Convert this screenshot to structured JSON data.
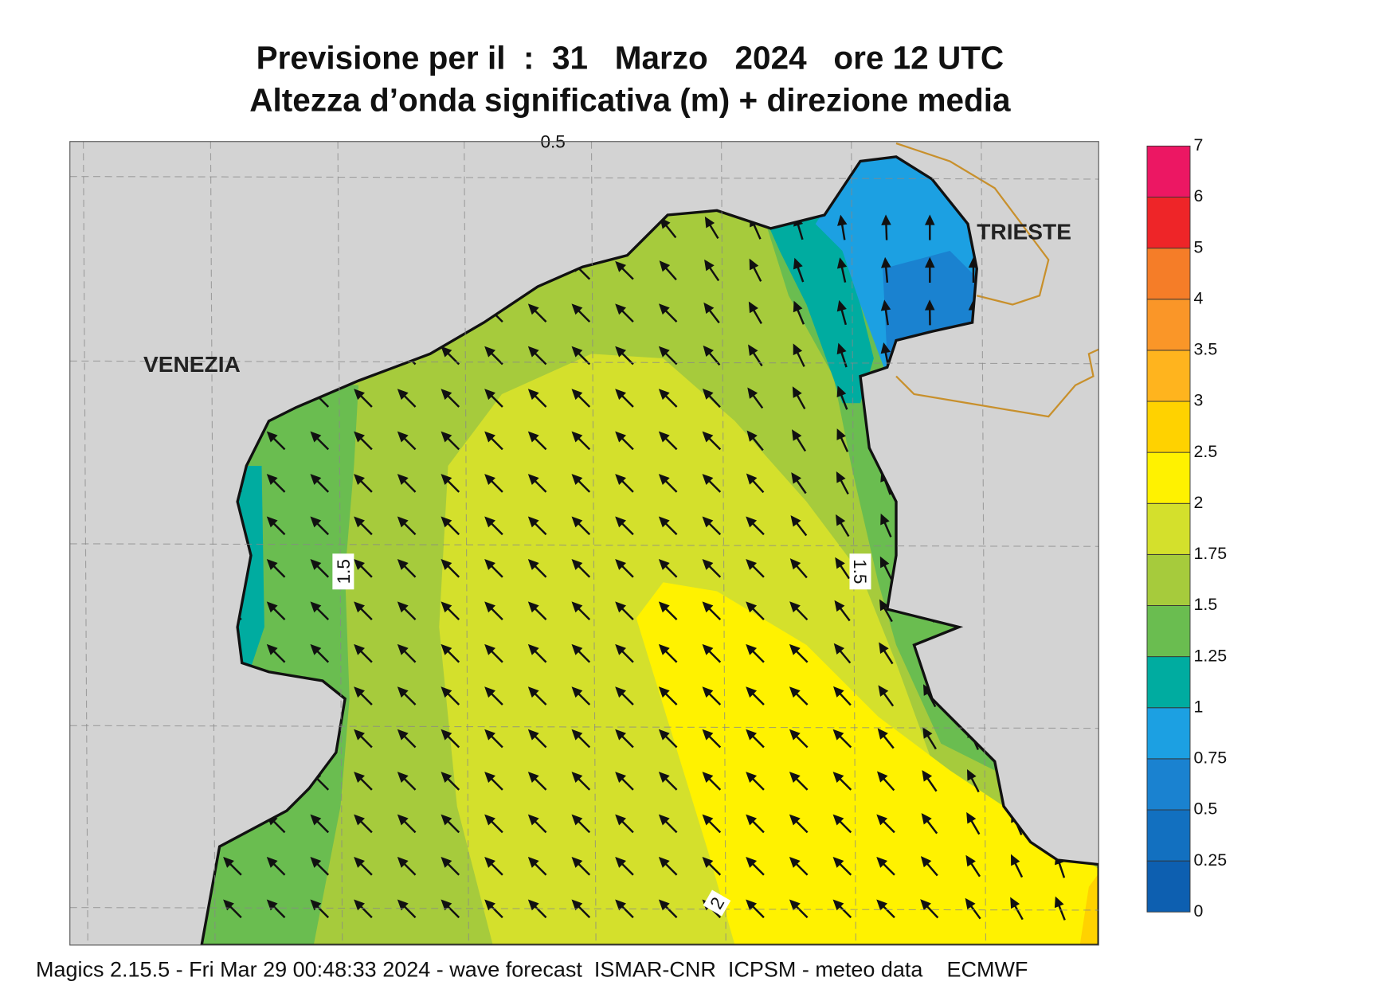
{
  "title": [
    "Previsione per il  :  31   Marzo   2024   ore 12 UTC",
    "Altezza d’onda significativa (m) + direzione media"
  ],
  "map": {
    "places": [
      "VENEZIA",
      "TRIESTE"
    ],
    "contour_labels": [
      "1.5",
      "1.5",
      "2",
      "0.5"
    ]
  },
  "colorbar": {
    "levels": [
      0,
      0.25,
      0.5,
      0.75,
      1,
      1.25,
      1.5,
      1.75,
      2,
      2.5,
      3,
      3.5,
      4,
      5,
      6,
      7
    ],
    "colors": [
      "#0d5fb0",
      "#1270c0",
      "#1a82d0",
      "#1ca0e2",
      "#00aca0",
      "#6abd50",
      "#a6cb3c",
      "#d4e02c",
      "#fff200",
      "#ffd200",
      "#ffb41e",
      "#fa9628",
      "#f57d28",
      "#ee2528",
      "#ec1763"
    ]
  },
  "footer": "Magics 2.15.5 - Fri Mar 29 00:48:33 2024 - wave forecast  ISMAR-CNR  ICPSM - meteo data    ECMWF"
}
